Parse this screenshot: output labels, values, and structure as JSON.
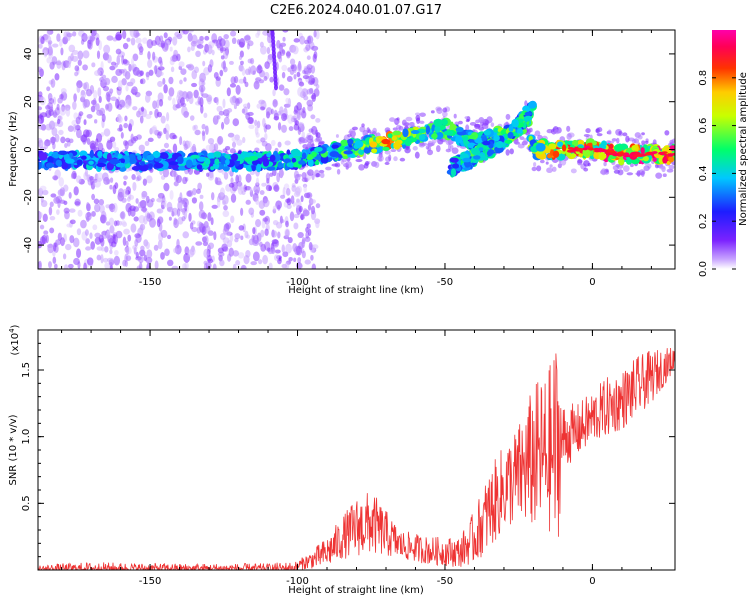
{
  "title": "C2E6.2024.040.01.07.G17",
  "colors": {
    "spectrogram_base": "#7b22ff",
    "snr_line": "#ee3333"
  },
  "chart_data": [
    {
      "type": "heatmap",
      "name": "spectrogram",
      "xlabel": "Height of straight line (km)",
      "ylabel": "Frequency (Hz)",
      "xlim": [
        -188,
        28
      ],
      "ylim": [
        -50,
        50
      ],
      "x_ticks": [
        -150,
        -100,
        -50,
        0
      ],
      "y_ticks": [
        -40,
        -20,
        0,
        20,
        40
      ],
      "colorbar": {
        "label": "Normalized spectral amplitude",
        "range": [
          0,
          1
        ],
        "ticks": [
          "0.0",
          "0.2",
          "0.4",
          "0.6",
          "0.8"
        ]
      },
      "main_trace": [
        {
          "x": -188,
          "f": -4,
          "amp": 0.35
        },
        {
          "x": -160,
          "f": -5,
          "amp": 0.38
        },
        {
          "x": -130,
          "f": -5,
          "amp": 0.4
        },
        {
          "x": -110,
          "f": -5,
          "amp": 0.42
        },
        {
          "x": -100,
          "f": -4,
          "amp": 0.45
        },
        {
          "x": -90,
          "f": -2,
          "amp": 0.5
        },
        {
          "x": -80,
          "f": 1,
          "amp": 0.55
        },
        {
          "x": -70,
          "f": 3,
          "amp": 0.75
        },
        {
          "x": -60,
          "f": 6,
          "amp": 0.6
        },
        {
          "x": -50,
          "f": 9,
          "amp": 0.55
        },
        {
          "x": -45,
          "f": 6,
          "amp": 0.5
        },
        {
          "x": -40,
          "f": 3,
          "amp": 0.5
        },
        {
          "x": -30,
          "f": 6,
          "amp": 0.55
        },
        {
          "x": -22,
          "f": 12,
          "amp": 0.5
        },
        {
          "x": -20,
          "f": 0,
          "amp": 0.6
        },
        {
          "x": -10,
          "f": 0,
          "amp": 0.8
        },
        {
          "x": 0,
          "f": 0,
          "amp": 0.85
        },
        {
          "x": 10,
          "f": -2,
          "amp": 0.9
        },
        {
          "x": 28,
          "f": -2,
          "amp": 0.9
        }
      ],
      "secondary_trace": [
        {
          "x": -48,
          "f": -8,
          "amp": 0.4
        },
        {
          "x": -40,
          "f": -3,
          "amp": 0.5
        },
        {
          "x": -30,
          "f": 4,
          "amp": 0.55
        },
        {
          "x": -25,
          "f": 10,
          "amp": 0.5
        },
        {
          "x": -20,
          "f": 18,
          "amp": 0.45
        }
      ]
    },
    {
      "type": "line",
      "name": "snr",
      "xlabel": "Height of straight line (km)",
      "ylabel": "SNR (10 * v/v)",
      "scale_note": "(x10",
      "scale_exp": "4",
      "scale_close": ")",
      "xlim": [
        -188,
        28
      ],
      "ylim": [
        0,
        1.8
      ],
      "x_ticks": [
        -150,
        -100,
        -50,
        0
      ],
      "y_ticks": [
        0.5,
        1.0,
        1.5
      ],
      "y_tick_labels": [
        "0.5",
        "1.0",
        "1.5"
      ],
      "envelope": [
        {
          "x": -188,
          "lo": 0.0,
          "hi": 0.04
        },
        {
          "x": -170,
          "lo": 0.0,
          "hi": 0.06
        },
        {
          "x": -140,
          "lo": 0.0,
          "hi": 0.05
        },
        {
          "x": -110,
          "lo": 0.0,
          "hi": 0.05
        },
        {
          "x": -100,
          "lo": 0.0,
          "hi": 0.07
        },
        {
          "x": -95,
          "lo": 0.01,
          "hi": 0.15
        },
        {
          "x": -90,
          "lo": 0.02,
          "hi": 0.25
        },
        {
          "x": -85,
          "lo": 0.08,
          "hi": 0.4
        },
        {
          "x": -80,
          "lo": 0.1,
          "hi": 0.55
        },
        {
          "x": -75,
          "lo": 0.12,
          "hi": 0.6
        },
        {
          "x": -70,
          "lo": 0.1,
          "hi": 0.45
        },
        {
          "x": -65,
          "lo": 0.08,
          "hi": 0.3
        },
        {
          "x": -55,
          "lo": 0.04,
          "hi": 0.25
        },
        {
          "x": -45,
          "lo": 0.02,
          "hi": 0.25
        },
        {
          "x": -40,
          "lo": 0.05,
          "hi": 0.45
        },
        {
          "x": -35,
          "lo": 0.15,
          "hi": 0.75
        },
        {
          "x": -30,
          "lo": 0.3,
          "hi": 0.95
        },
        {
          "x": -25,
          "lo": 0.35,
          "hi": 1.1
        },
        {
          "x": -20,
          "lo": 0.3,
          "hi": 1.4
        },
        {
          "x": -15,
          "lo": 0.3,
          "hi": 1.5
        },
        {
          "x": -12,
          "lo": 0.1,
          "hi": 1.78
        },
        {
          "x": -10,
          "lo": 0.75,
          "hi": 1.25
        },
        {
          "x": -5,
          "lo": 0.85,
          "hi": 1.25
        },
        {
          "x": 0,
          "lo": 0.95,
          "hi": 1.35
        },
        {
          "x": 5,
          "lo": 1.0,
          "hi": 1.45
        },
        {
          "x": 10,
          "lo": 1.05,
          "hi": 1.5
        },
        {
          "x": 15,
          "lo": 1.15,
          "hi": 1.6
        },
        {
          "x": 20,
          "lo": 1.25,
          "hi": 1.65
        },
        {
          "x": 28,
          "lo": 1.5,
          "hi": 1.68
        }
      ]
    }
  ]
}
